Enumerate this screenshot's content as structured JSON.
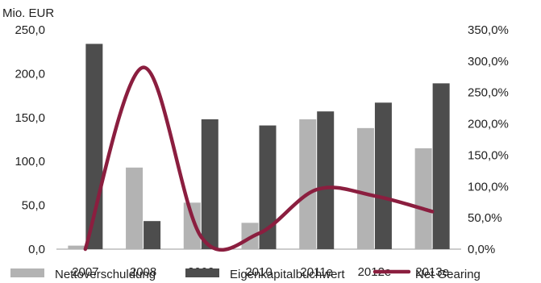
{
  "chart_data": {
    "type": "bar",
    "title": "",
    "ylabel": "Mio. EUR",
    "y2label": "",
    "categories": [
      "2007",
      "2008",
      "2009",
      "2010",
      "2011e",
      "2012e",
      "2013e"
    ],
    "series": [
      {
        "name": "Nettoverschuldung",
        "type": "bar",
        "axis": "left",
        "color": "#b3b3b3",
        "values": [
          4,
          93,
          53,
          30,
          148,
          138,
          115
        ]
      },
      {
        "name": "Eigenkapitalbuchwert",
        "type": "bar",
        "axis": "left",
        "color": "#4d4d4d",
        "values": [
          234,
          32,
          148,
          141,
          157,
          167,
          189
        ]
      },
      {
        "name": "Net Gearing",
        "type": "line",
        "axis": "right",
        "color": "#8b1e3f",
        "values": [
          0.0,
          290.0,
          20.0,
          25.0,
          95.0,
          85.0,
          60.0
        ]
      }
    ],
    "y_ticks": [
      "0,0",
      "50,0",
      "100,0",
      "150,0",
      "200,0",
      "250,0"
    ],
    "y2_ticks": [
      "0,0%",
      "50,0%",
      "100,0%",
      "150,0%",
      "200,0%",
      "250,0%",
      "300,0%",
      "350,0%"
    ],
    "ylim": [
      0,
      250
    ],
    "y2lim": [
      0,
      350
    ],
    "grid": false,
    "legend_position": "bottom"
  }
}
